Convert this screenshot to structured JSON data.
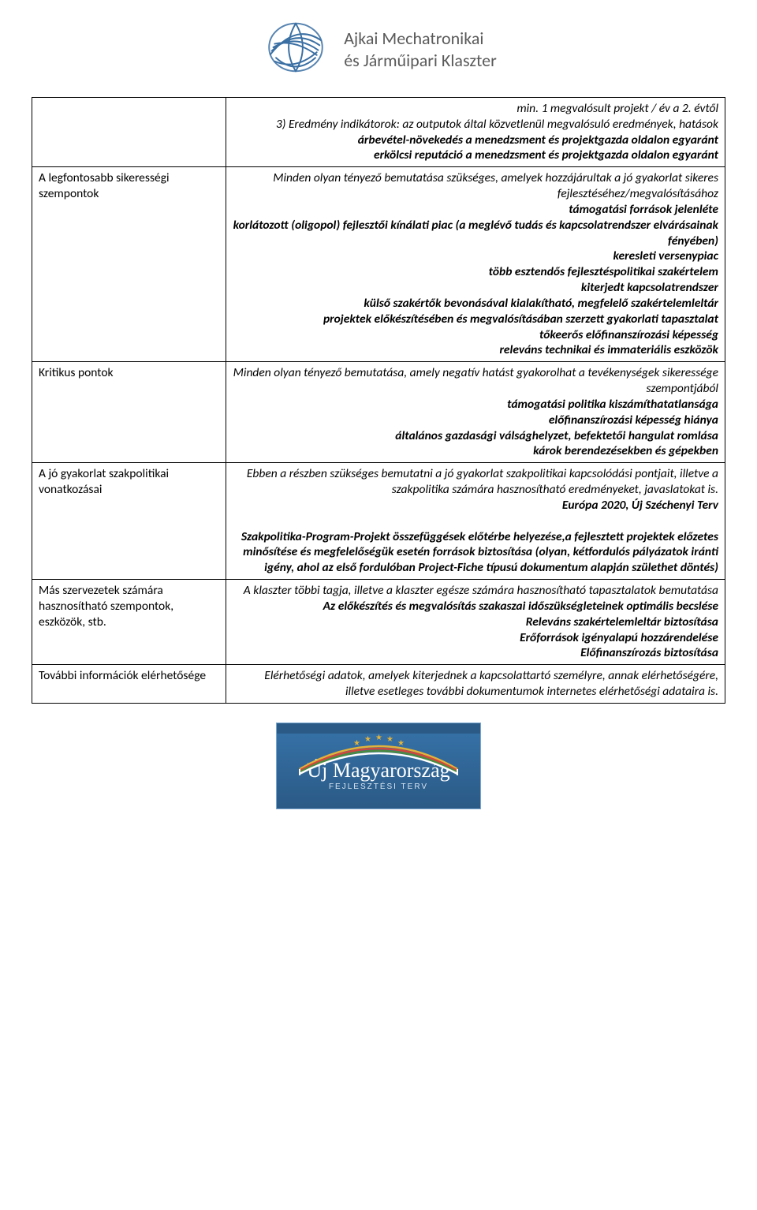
{
  "header": {
    "org_line1": "Ajkai Mechatronikai",
    "org_line2": "és Járműipari Klaszter",
    "logo_stroke_color": "#3a6fa3",
    "logo_accent_color": "#355d86"
  },
  "table": {
    "border_color": "#000000",
    "font_size_pt": 12,
    "text_align_right": "right",
    "italic": true,
    "rows": [
      {
        "left": "",
        "right_plain": "min. 1 megvalósult projekt / év a 2. évtől\n3) Eredmény indikátorok: az outputok által közvetlenül megvalósuló eredmények, hatások",
        "right_bold": "árbevétel-növekedés a menedzsment és projektgazda oldalon egyaránt\nerkölcsi reputáció a menedzsment és projektgazda oldalon egyaránt"
      },
      {
        "left": "A legfontosabb sikerességi szempontok",
        "right_plain": "Minden olyan tényező bemutatása szükséges, amelyek hozzájárultak a jó gyakorlat sikeres fejlesztéséhez/megvalósításához",
        "right_bold": "támogatási források jelenléte\nkorlátozott (oligopol) fejlesztői kínálati piac (a meglévő tudás és kapcsolatrendszer elvárásainak fényében)\nkeresleti versenypiac\ntöbb esztendős fejlesztéspolitikai szakértelem\nkiterjedt kapcsolatrendszer\nkülső szakértők bevonásával kialakítható, megfelelő szakértelemleltár\nprojektek előkészítésében és megvalósításában szerzett gyakorlati tapasztalat\ntőkeerős előfinanszírozási képesség\nreleváns technikai és immateriális eszközök"
      },
      {
        "left": "Kritikus pontok",
        "right_plain": "Minden olyan tényező bemutatása, amely negatív hatást gyakorolhat a tevékenységek sikeressége szempontjából",
        "right_bold": "támogatási politika kiszámíthatatlansága\nelőfinanszírozási képesség hiánya\náltalános gazdasági válsághelyzet, befektetői hangulat romlása\nkárok berendezésekben és gépekben"
      },
      {
        "left": "A jó gyakorlat  szakpolitikai vonatkozásai",
        "right_plain": "Ebben a részben szükséges bemutatni a jó gyakorlat szakpolitikai kapcsolódási pontjait, illetve a szakpolitika számára hasznosítható eredményeket, javaslatokat is.",
        "right_bold": "Európa 2020, Új Széchenyi Terv\n\nSzakpolitika-Program-Projekt összefüggések előtérbe helyezése,a fejlesztett projektek előzetes minősítése és megfelelőségük esetén források biztosítása (olyan, kétfordulós pályázatok iránti igény, ahol az első fordulóban Project-Fiche típusú dokumentum alapján születhet döntés)"
      },
      {
        "left": "Más szervezetek számára hasznosítható szempontok, eszközök, stb.",
        "right_plain": "A klaszter többi tagja, illetve a klaszter egésze számára hasznosítható tapasztalatok bemutatása",
        "right_bold": "Az előkészítés és megvalósítás szakaszai időszükségleteinek optimális becslése\nReleváns szakértelemleltár biztosítása\nErőforrások igényalapú hozzárendelése\nElőfinanszírozás biztosítása"
      },
      {
        "left": "További információk elérhetősége",
        "right_plain": "Elérhetőségi adatok, amelyek kiterjednek a kapcsolattartó személyre, annak elérhetőségére, illetve esetleges további dokumentumok internetes elérhetőségi adataira is.",
        "right_bold": ""
      }
    ]
  },
  "footer": {
    "title": "Új Magyarország",
    "subtitle": "FEJLESZTÉSI TERV",
    "bg_color_top": "#2b5a86",
    "bg_color_bottom": "#2b5a86",
    "border_color": "#7aa7d0",
    "title_color": "#ffffff",
    "subtitle_color": "#d8e6f2",
    "arc_colors": [
      "#e2b33a",
      "#d0483a",
      "#4b8c3f",
      "#ffffff"
    ],
    "star_color": "#e2b33a"
  }
}
